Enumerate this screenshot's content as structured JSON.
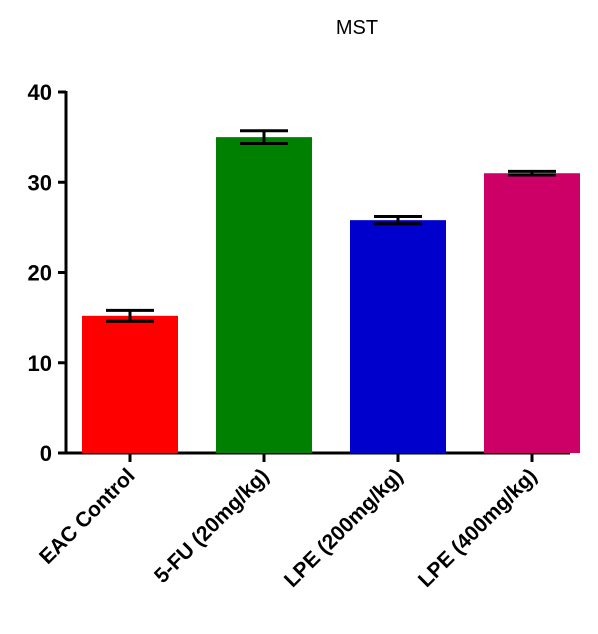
{
  "chart_data": {
    "type": "bar",
    "title": "MST",
    "xlabel": "",
    "ylabel": "",
    "ylim": [
      0,
      40
    ],
    "yticks": [
      0,
      10,
      20,
      30,
      40
    ],
    "categories": [
      "EAC Control",
      "5-FU (20mg/kg)",
      "LPE (200mg/kg)",
      "LPE (400mg/kg)"
    ],
    "values": [
      15.2,
      35.0,
      25.8,
      31.0
    ],
    "errors": [
      0.6,
      0.7,
      0.4,
      0.2
    ],
    "colors": [
      "#ff0000",
      "#008000",
      "#0000cc",
      "#cc0066"
    ],
    "grid": false,
    "legend": "none"
  }
}
